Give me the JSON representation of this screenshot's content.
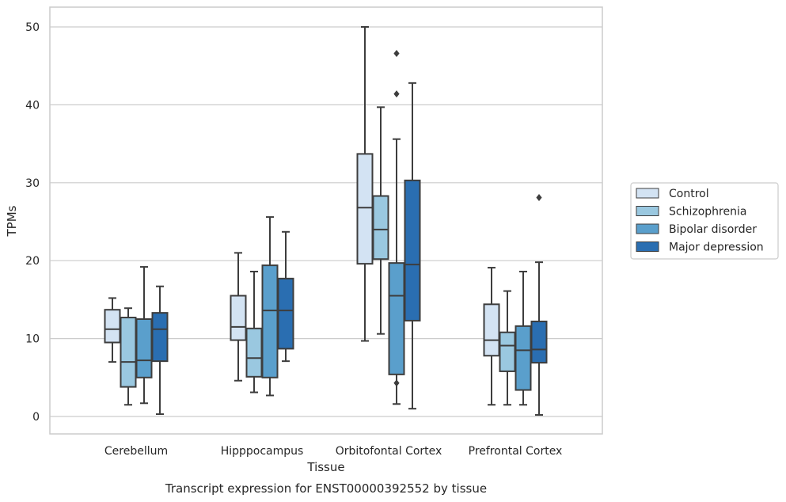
{
  "caption": "Transcript expression for ENST00000392552 by tissue",
  "chart_data": {
    "type": "box",
    "xlabel": "Tissue",
    "ylabel": "TPMs",
    "ylim": [
      -2,
      52.5
    ],
    "yticks": [
      0,
      10,
      20,
      30,
      40,
      50
    ],
    "grid": "horizontal",
    "legend_position": "right",
    "categories": [
      "Cerebellum",
      "Hipppocampus",
      "Orbitofontal Cortex",
      "Prefrontal Cortex"
    ],
    "series": [
      {
        "name": "Control",
        "color": "#d3e3f3",
        "boxes": [
          {
            "whislo": 7.0,
            "q1": 9.5,
            "med": 11.2,
            "q3": 13.7,
            "whishi": 15.2,
            "fliers": []
          },
          {
            "whislo": 4.6,
            "q1": 9.8,
            "med": 11.5,
            "q3": 15.5,
            "whishi": 21.0,
            "fliers": []
          },
          {
            "whislo": 9.7,
            "q1": 19.6,
            "med": 26.8,
            "q3": 33.7,
            "whishi": 50.0,
            "fliers": []
          },
          {
            "whislo": 1.5,
            "q1": 7.8,
            "med": 9.8,
            "q3": 14.4,
            "whishi": 19.1,
            "fliers": []
          }
        ]
      },
      {
        "name": "Schizophrenia",
        "color": "#9ac8e0",
        "boxes": [
          {
            "whislo": 1.5,
            "q1": 3.8,
            "med": 7.0,
            "q3": 12.7,
            "whishi": 13.9,
            "fliers": []
          },
          {
            "whislo": 3.1,
            "q1": 5.1,
            "med": 7.5,
            "q3": 11.3,
            "whishi": 18.6,
            "fliers": []
          },
          {
            "whislo": 10.6,
            "q1": 20.2,
            "med": 24.0,
            "q3": 28.3,
            "whishi": 39.7,
            "fliers": []
          },
          {
            "whislo": 1.5,
            "q1": 5.8,
            "med": 9.1,
            "q3": 10.8,
            "whishi": 16.1,
            "fliers": []
          }
        ]
      },
      {
        "name": "Bipolar disorder",
        "color": "#5a9fcc",
        "boxes": [
          {
            "whislo": 1.7,
            "q1": 5.0,
            "med": 7.2,
            "q3": 12.5,
            "whishi": 19.2,
            "fliers": []
          },
          {
            "whislo": 2.7,
            "q1": 5.0,
            "med": 13.6,
            "q3": 19.4,
            "whishi": 25.6,
            "fliers": []
          },
          {
            "whislo": 1.6,
            "q1": 5.4,
            "med": 15.5,
            "q3": 19.7,
            "whishi": 35.6,
            "fliers": [
              4.3,
              41.4,
              46.6
            ]
          },
          {
            "whislo": 1.5,
            "q1": 3.4,
            "med": 8.5,
            "q3": 11.6,
            "whishi": 18.6,
            "fliers": []
          }
        ]
      },
      {
        "name": "Major depression",
        "color": "#2a6eb1",
        "boxes": [
          {
            "whislo": 0.3,
            "q1": 7.1,
            "med": 11.2,
            "q3": 13.3,
            "whishi": 16.7,
            "fliers": []
          },
          {
            "whislo": 7.1,
            "q1": 8.7,
            "med": 13.6,
            "q3": 17.7,
            "whishi": 23.7,
            "fliers": []
          },
          {
            "whislo": 1.0,
            "q1": 12.3,
            "med": 19.5,
            "q3": 30.3,
            "whishi": 42.8,
            "fliers": []
          },
          {
            "whislo": 0.2,
            "q1": 6.9,
            "med": 8.6,
            "q3": 12.2,
            "whishi": 19.8,
            "fliers": [
              28.1
            ]
          }
        ]
      }
    ]
  }
}
